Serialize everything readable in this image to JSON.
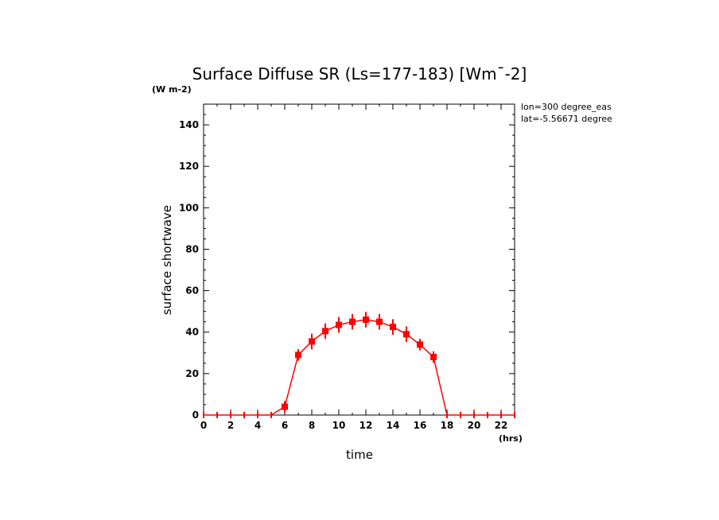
{
  "chart_data": {
    "type": "line",
    "title": "Surface Diffuse SR (Ls=177-183) [Wm^-2]",
    "title_units_prefix": "Surface Diffuse SR (Ls=177-183) [Wm",
    "title_units_suffix": "-2]",
    "y_units_label": "(W m-2)",
    "xlabel": "time",
    "x_units_label": "(hrs)",
    "ylabel": "surface shortwave",
    "xlim": [
      0,
      23
    ],
    "ylim": [
      0,
      150
    ],
    "x_ticks": [
      0,
      2,
      4,
      6,
      8,
      10,
      12,
      14,
      16,
      18,
      20,
      22
    ],
    "y_ticks": [
      0,
      20,
      40,
      60,
      80,
      100,
      120,
      140
    ],
    "x_tick_labels": [
      "0",
      "2",
      "4",
      "6",
      "8",
      "10",
      "12",
      "14",
      "16",
      "18",
      "20",
      "22"
    ],
    "y_tick_labels": [
      "0",
      "20",
      "40",
      "60",
      "80",
      "100",
      "120",
      "140"
    ],
    "annotations": [
      "lon=300 degree_eas",
      "lat=-5.56671 degree"
    ],
    "color": "#ff0000",
    "series": [
      {
        "x": [
          0,
          1,
          2,
          3,
          4,
          5,
          6,
          7,
          8,
          9,
          10,
          11,
          12,
          13,
          14,
          15,
          16,
          17,
          18,
          19,
          20,
          21,
          22,
          23
        ],
        "y": [
          0,
          0,
          0,
          0,
          0,
          0,
          4,
          29,
          35.5,
          40.5,
          43.5,
          45,
          46,
          45,
          42.5,
          39,
          34,
          28,
          0,
          0,
          0,
          0,
          0,
          0
        ],
        "err": [
          0,
          0,
          0,
          0,
          0,
          0,
          2,
          2,
          3,
          3,
          3,
          3,
          3,
          3,
          3,
          3,
          2,
          2,
          0,
          0,
          0,
          0,
          0,
          0
        ]
      }
    ]
  }
}
